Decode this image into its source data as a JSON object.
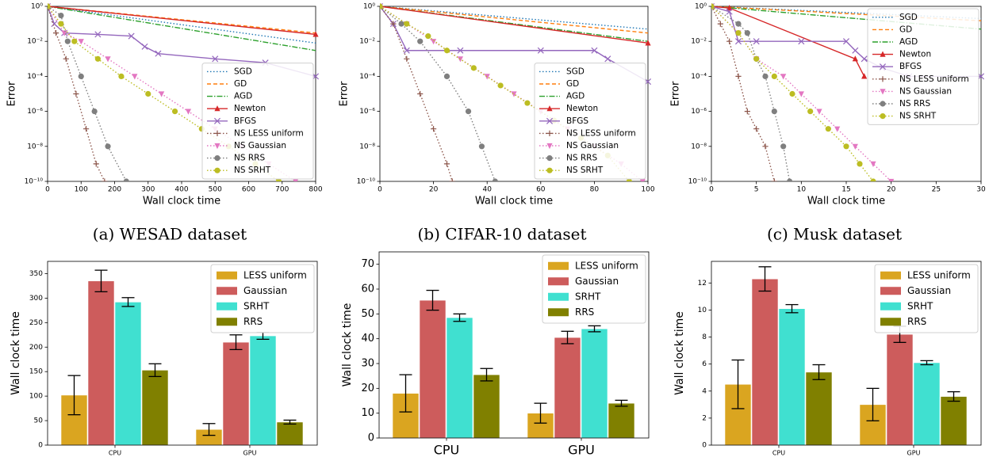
{
  "chart_data": [
    {
      "type": "line",
      "caption": "(a) WESAD dataset",
      "xlabel": "Wall clock time",
      "ylabel": "Error",
      "log_y": true,
      "legend": "lower right",
      "xlim": [
        0,
        800
      ],
      "xticks": [
        0,
        100,
        200,
        300,
        400,
        500,
        600,
        700,
        800
      ],
      "ylim": [
        1e-10,
        1
      ],
      "yticks": [
        {
          "value": 1e-10,
          "label": "10⁻¹⁰"
        },
        {
          "value": 1e-08,
          "label": "10⁻⁸"
        },
        {
          "value": 1e-06,
          "label": "10⁻⁶"
        },
        {
          "value": 0.0001,
          "label": "10⁻⁴"
        },
        {
          "value": 0.01,
          "label": "10⁻²"
        },
        {
          "value": 1,
          "label": "10⁰"
        }
      ],
      "series": [
        {
          "name": "SGD",
          "color": "#1f77b4",
          "dash": "dotted",
          "marker": "none",
          "x": [
            0,
            800
          ],
          "values": [
            1,
            0.008
          ]
        },
        {
          "name": "GD",
          "color": "#ff7f0e",
          "dash": "dashed",
          "marker": "none",
          "x": [
            0,
            800
          ],
          "values": [
            1,
            0.03
          ]
        },
        {
          "name": "AGD",
          "color": "#2ca02c",
          "dash": "dashdot",
          "marker": "none",
          "x": [
            0,
            800
          ],
          "values": [
            1,
            0.003
          ]
        },
        {
          "name": "Newton",
          "color": "#d62728",
          "dash": "solid",
          "marker": "triangle-up",
          "x": [
            0,
            800
          ],
          "values": [
            1,
            0.025
          ]
        },
        {
          "name": "BFGS",
          "color": "#9467bd",
          "dash": "solid",
          "marker": "x",
          "x": [
            0,
            20,
            50,
            150,
            250,
            290,
            330,
            500,
            650,
            800
          ],
          "values": [
            1,
            0.1,
            0.03,
            0.025,
            0.02,
            0.005,
            0.002,
            0.001,
            0.0006,
            0.0001
          ]
        },
        {
          "name": "NS LESS uniform",
          "color": "#8c564b",
          "dash": "dotted",
          "marker": "plus",
          "x": [
            0,
            25,
            55,
            85,
            115,
            145,
            170
          ],
          "values": [
            1,
            0.03,
            0.001,
            1e-05,
            1e-07,
            1e-09,
            1e-10
          ]
        },
        {
          "name": "NS Gaussian",
          "color": "#e377c2",
          "dash": "dotted",
          "marker": "triangle-down",
          "x": [
            0,
            50,
            100,
            180,
            260,
            340,
            420,
            500,
            580,
            660,
            740
          ],
          "values": [
            1,
            0.03,
            0.01,
            0.001,
            0.0001,
            1e-05,
            1e-06,
            1e-07,
            1e-08,
            1e-09,
            1e-10
          ]
        },
        {
          "name": "NS RRS",
          "color": "#7f7f7f",
          "dash": "dotted",
          "marker": "circle",
          "x": [
            0,
            40,
            60,
            100,
            140,
            180,
            235
          ],
          "values": [
            1,
            0.3,
            0.01,
            0.0001,
            1e-06,
            1e-08,
            1e-10
          ]
        },
        {
          "name": "NS SRHT",
          "color": "#bcbd22",
          "dash": "dotted",
          "marker": "circle",
          "x": [
            0,
            40,
            80,
            150,
            220,
            300,
            380,
            460,
            540,
            620,
            690
          ],
          "values": [
            1,
            0.1,
            0.01,
            0.001,
            0.0001,
            1e-05,
            1e-06,
            1e-07,
            1e-08,
            1e-09,
            1e-10
          ]
        }
      ]
    },
    {
      "type": "line",
      "caption": "(b) CIFAR-10 dataset",
      "xlabel": "Wall clock time",
      "ylabel": "Error",
      "log_y": true,
      "legend": "lower right",
      "xlim": [
        0,
        100
      ],
      "xticks": [
        0,
        20,
        40,
        60,
        80,
        100
      ],
      "ylim": [
        1e-10,
        1
      ],
      "yticks": [
        {
          "value": 1e-10,
          "label": "10⁻¹⁰"
        },
        {
          "value": 1e-08,
          "label": "10⁻⁸"
        },
        {
          "value": 1e-06,
          "label": "10⁻⁶"
        },
        {
          "value": 0.0001,
          "label": "10⁻⁴"
        },
        {
          "value": 0.01,
          "label": "10⁻²"
        },
        {
          "value": 1,
          "label": "10⁰"
        }
      ],
      "series": [
        {
          "name": "SGD",
          "color": "#1f77b4",
          "dash": "dotted",
          "marker": "none",
          "x": [
            0,
            100
          ],
          "values": [
            1,
            0.05
          ]
        },
        {
          "name": "GD",
          "color": "#ff7f0e",
          "dash": "dashed",
          "marker": "none",
          "x": [
            0,
            100
          ],
          "values": [
            1,
            0.03
          ]
        },
        {
          "name": "AGD",
          "color": "#2ca02c",
          "dash": "dashdot",
          "marker": "none",
          "x": [
            0,
            100
          ],
          "values": [
            1,
            0.01
          ]
        },
        {
          "name": "Newton",
          "color": "#d62728",
          "dash": "solid",
          "marker": "triangle-up",
          "x": [
            0,
            100
          ],
          "values": [
            1,
            0.008
          ]
        },
        {
          "name": "BFGS",
          "color": "#9467bd",
          "dash": "solid",
          "marker": "x",
          "x": [
            0,
            5,
            10,
            30,
            60,
            80,
            85,
            100
          ],
          "values": [
            1,
            0.1,
            0.003,
            0.003,
            0.003,
            0.003,
            0.001,
            5e-05
          ]
        },
        {
          "name": "NS LESS uniform",
          "color": "#8c564b",
          "dash": "dotted",
          "marker": "plus",
          "x": [
            0,
            5,
            10,
            15,
            20,
            25,
            27
          ],
          "values": [
            1,
            0.1,
            0.001,
            1e-05,
            1e-07,
            1e-09,
            1e-10
          ]
        },
        {
          "name": "NS Gaussian",
          "color": "#e377c2",
          "dash": "dotted",
          "marker": "triangle-down",
          "x": [
            0,
            10,
            20,
            30,
            40,
            50,
            60,
            70,
            80,
            90,
            98
          ],
          "values": [
            1,
            0.1,
            0.01,
            0.001,
            0.0001,
            1e-05,
            1e-06,
            1e-07,
            1e-08,
            1e-09,
            1e-10
          ]
        },
        {
          "name": "NS RRS",
          "color": "#7f7f7f",
          "dash": "dotted",
          "marker": "circle",
          "x": [
            0,
            8,
            15,
            25,
            33,
            38,
            43
          ],
          "values": [
            1,
            0.1,
            0.01,
            0.0001,
            1e-06,
            1e-08,
            1e-10
          ]
        },
        {
          "name": "NS SRHT",
          "color": "#bcbd22",
          "dash": "dotted",
          "marker": "circle",
          "x": [
            0,
            10,
            18,
            25,
            35,
            45,
            55,
            65,
            75,
            85,
            93
          ],
          "values": [
            1,
            0.1,
            0.02,
            0.003,
            0.0003,
            3e-05,
            3e-06,
            3e-07,
            3e-08,
            3e-09,
            1e-10
          ]
        }
      ]
    },
    {
      "type": "line",
      "caption": "(c) Musk dataset",
      "xlabel": "Wall clock time",
      "ylabel": "Error",
      "log_y": true,
      "legend": "upper right",
      "xlim": [
        0,
        30
      ],
      "xticks": [
        0,
        5,
        10,
        15,
        20,
        25,
        30
      ],
      "ylim": [
        1e-10,
        1
      ],
      "yticks": [
        {
          "value": 1e-10,
          "label": "10⁻¹⁰"
        },
        {
          "value": 1e-08,
          "label": "10⁻⁸"
        },
        {
          "value": 1e-06,
          "label": "10⁻⁶"
        },
        {
          "value": 0.0001,
          "label": "10⁻⁴"
        },
        {
          "value": 0.01,
          "label": "10⁻²"
        },
        {
          "value": 1,
          "label": "10⁰"
        }
      ],
      "series": [
        {
          "name": "SGD",
          "color": "#1f77b4",
          "dash": "dotted",
          "marker": "none",
          "x": [
            0,
            30
          ],
          "values": [
            1,
            0.2
          ]
        },
        {
          "name": "GD",
          "color": "#ff7f0e",
          "dash": "dashed",
          "marker": "none",
          "x": [
            0,
            30
          ],
          "values": [
            1,
            0.15
          ]
        },
        {
          "name": "AGD",
          "color": "#2ca02c",
          "dash": "dashdot",
          "marker": "none",
          "x": [
            0,
            30
          ],
          "values": [
            1,
            0.05
          ]
        },
        {
          "name": "Newton",
          "color": "#d62728",
          "dash": "solid",
          "marker": "triangle-up",
          "x": [
            0,
            2,
            16,
            17
          ],
          "values": [
            1,
            0.8,
            0.001,
            0.0001
          ]
        },
        {
          "name": "BFGS",
          "color": "#9467bd",
          "dash": "solid",
          "marker": "x",
          "x": [
            0,
            2,
            3,
            5,
            10,
            15,
            16,
            17,
            19,
            22,
            30
          ],
          "values": [
            1,
            0.5,
            0.01,
            0.01,
            0.01,
            0.01,
            0.003,
            0.001,
            0.0003,
            0.0001,
            0.0001
          ]
        },
        {
          "name": "NS LESS uniform",
          "color": "#8c564b",
          "dash": "dotted",
          "marker": "plus",
          "x": [
            0,
            1,
            2,
            3,
            4,
            5,
            6,
            7
          ],
          "values": [
            1,
            0.1,
            0.01,
            0.0001,
            1e-06,
            1e-07,
            1e-08,
            1e-10
          ]
        },
        {
          "name": "NS Gaussian",
          "color": "#e377c2",
          "dash": "dotted",
          "marker": "triangle-down",
          "x": [
            0,
            3,
            5,
            8,
            10,
            12,
            14,
            16,
            18,
            20
          ],
          "values": [
            1,
            0.03,
            0.001,
            0.0001,
            1e-05,
            1e-06,
            1e-07,
            1e-08,
            1e-09,
            1e-10
          ]
        },
        {
          "name": "NS RRS",
          "color": "#7f7f7f",
          "dash": "dotted",
          "marker": "circle",
          "x": [
            0,
            3,
            4,
            5,
            6,
            7,
            8,
            8.7
          ],
          "values": [
            1,
            0.1,
            0.03,
            0.001,
            0.0001,
            1e-06,
            1e-08,
            1e-10
          ]
        },
        {
          "name": "NS SRHT",
          "color": "#bcbd22",
          "dash": "dotted",
          "marker": "circle",
          "x": [
            0,
            3,
            5,
            7,
            9,
            11,
            13,
            15,
            16.5,
            18
          ],
          "values": [
            1,
            0.03,
            0.001,
            0.0001,
            1e-05,
            1e-06,
            1e-07,
            1e-08,
            1e-09,
            1e-10
          ]
        }
      ]
    },
    {
      "type": "bar",
      "ylabel": "Wall clock time",
      "legend": "upper right",
      "categories": [
        "CPU",
        "GPU"
      ],
      "ylim": [
        0,
        375
      ],
      "yticks": [
        0,
        50,
        100,
        150,
        200,
        250,
        300,
        350
      ],
      "series": [
        {
          "name": "LESS uniform",
          "color": "#daa520",
          "values": [
            102,
            32
          ],
          "errors": [
            40,
            12
          ]
        },
        {
          "name": "Gaussian",
          "color": "#cd5c5c",
          "values": [
            335,
            210
          ],
          "errors": [
            22,
            15
          ]
        },
        {
          "name": "SRHT",
          "color": "#40e0d0",
          "values": [
            292,
            223
          ],
          "errors": [
            9,
            7
          ]
        },
        {
          "name": "RRS",
          "color": "#808000",
          "values": [
            153,
            47
          ],
          "errors": [
            13,
            4
          ]
        }
      ]
    },
    {
      "type": "bar",
      "ylabel": "Wall clock time",
      "legend": "upper right",
      "categories": [
        "CPU",
        "GPU"
      ],
      "ylim": [
        0,
        75
      ],
      "yticks": [
        0,
        10,
        20,
        30,
        40,
        50,
        60,
        70
      ],
      "series": [
        {
          "name": "LESS uniform",
          "color": "#daa520",
          "values": [
            18,
            10
          ],
          "errors": [
            7.5,
            4
          ]
        },
        {
          "name": "Gaussian",
          "color": "#cd5c5c",
          "values": [
            55.5,
            40.5
          ],
          "errors": [
            4,
            2.5
          ]
        },
        {
          "name": "SRHT",
          "color": "#40e0d0",
          "values": [
            48.5,
            44
          ],
          "errors": [
            1.5,
            1.2
          ]
        },
        {
          "name": "RRS",
          "color": "#808000",
          "values": [
            25.5,
            14
          ],
          "errors": [
            2.5,
            1.2
          ]
        }
      ]
    },
    {
      "type": "bar",
      "ylabel": "Wall clock time",
      "legend": "upper right",
      "categories": [
        "CPU",
        "GPU"
      ],
      "ylim": [
        0,
        13.6
      ],
      "yticks": [
        0,
        2,
        4,
        6,
        8,
        10,
        12
      ],
      "series": [
        {
          "name": "LESS uniform",
          "color": "#daa520",
          "values": [
            4.5,
            3
          ],
          "errors": [
            1.8,
            1.2
          ]
        },
        {
          "name": "Gaussian",
          "color": "#cd5c5c",
          "values": [
            12.3,
            8.2
          ],
          "errors": [
            0.9,
            0.6
          ]
        },
        {
          "name": "SRHT",
          "color": "#40e0d0",
          "values": [
            10.1,
            6.1
          ],
          "errors": [
            0.3,
            0.15
          ]
        },
        {
          "name": "RRS",
          "color": "#808000",
          "values": [
            5.4,
            3.6
          ],
          "errors": [
            0.55,
            0.35
          ]
        }
      ]
    }
  ]
}
